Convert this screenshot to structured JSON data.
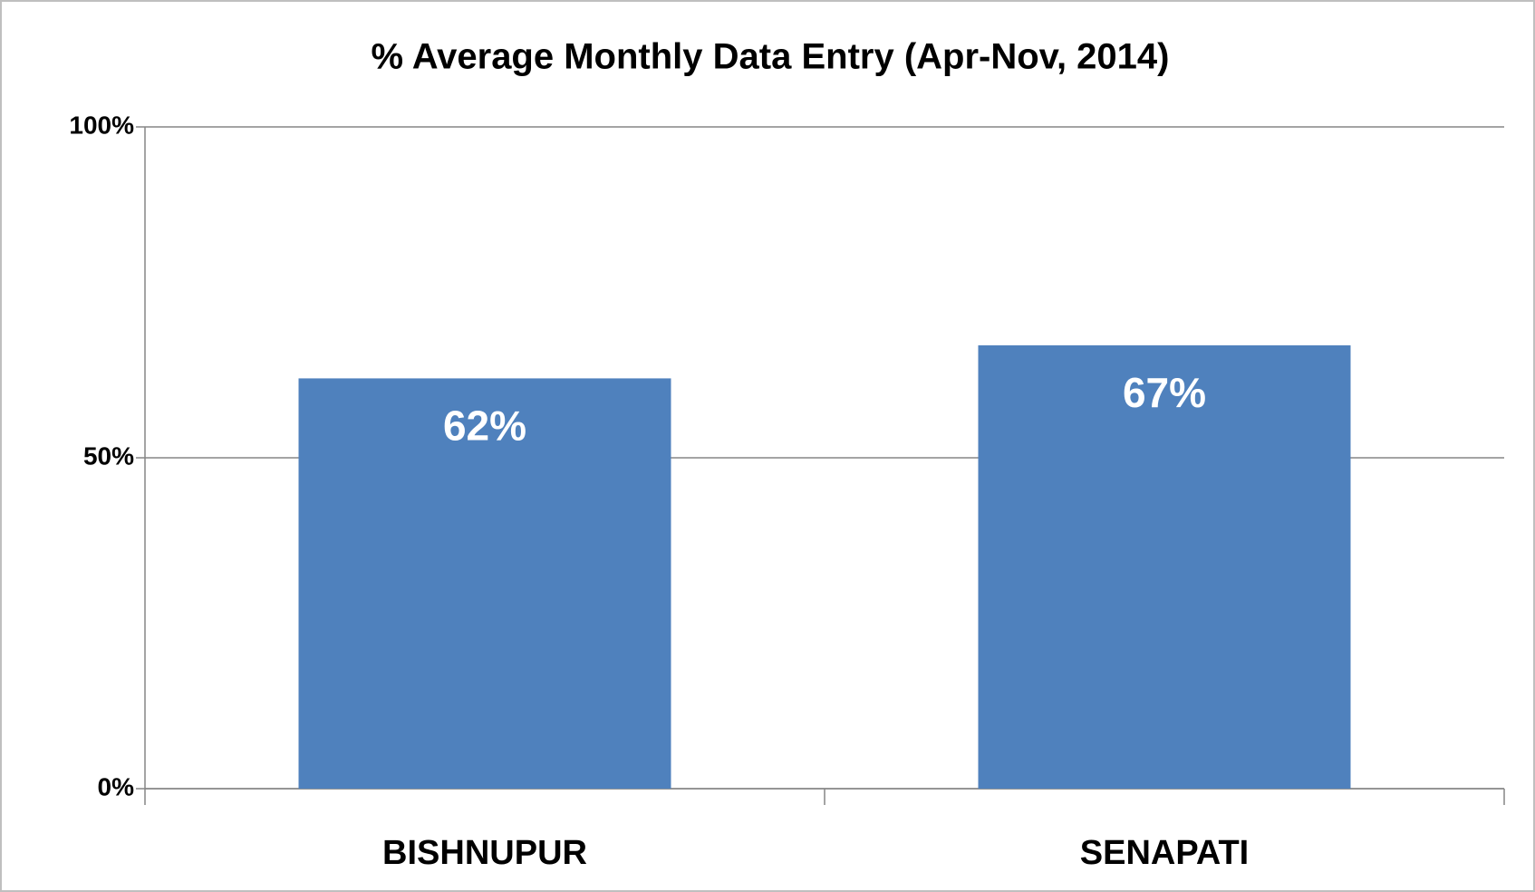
{
  "chart_data": {
    "type": "bar",
    "title": "% Average Monthly Data Entry (Apr-Nov, 2014)",
    "categories": [
      "BISHNUPUR",
      "SENAPATI"
    ],
    "values": [
      62,
      67
    ],
    "value_labels": [
      "62%",
      "67%"
    ],
    "color": "#4f81bd",
    "ylim": [
      0,
      100
    ],
    "yticks": [
      {
        "value": 0,
        "label": "0%"
      },
      {
        "value": 50,
        "label": "50%"
      },
      {
        "value": 100,
        "label": "100%"
      }
    ],
    "grid": true
  }
}
